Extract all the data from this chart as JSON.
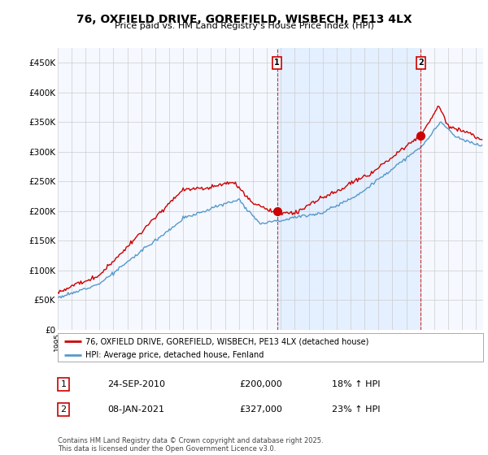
{
  "title": "76, OXFIELD DRIVE, GOREFIELD, WISBECH, PE13 4LX",
  "subtitle": "Price paid vs. HM Land Registry's House Price Index (HPI)",
  "legend_line1": "76, OXFIELD DRIVE, GOREFIELD, WISBECH, PE13 4LX (detached house)",
  "legend_line2": "HPI: Average price, detached house, Fenland",
  "sale1_date": "24-SEP-2010",
  "sale1_price": "£200,000",
  "sale1_hpi": "18% ↑ HPI",
  "sale2_date": "08-JAN-2021",
  "sale2_price": "£327,000",
  "sale2_hpi": "23% ↑ HPI",
  "footnote": "Contains HM Land Registry data © Crown copyright and database right 2025.\nThis data is licensed under the Open Government Licence v3.0.",
  "red_color": "#cc0000",
  "blue_color": "#5599cc",
  "shade_color": "#ddeeff",
  "sale_marker_color": "#cc0000",
  "ylim": [
    0,
    475000
  ],
  "yticks": [
    0,
    50000,
    100000,
    150000,
    200000,
    250000,
    300000,
    350000,
    400000,
    450000
  ],
  "ytick_labels": [
    "£0",
    "£50K",
    "£100K",
    "£150K",
    "£200K",
    "£250K",
    "£300K",
    "£350K",
    "£400K",
    "£450K"
  ],
  "background": "#ffffff",
  "plot_bg": "#f5f8ff"
}
